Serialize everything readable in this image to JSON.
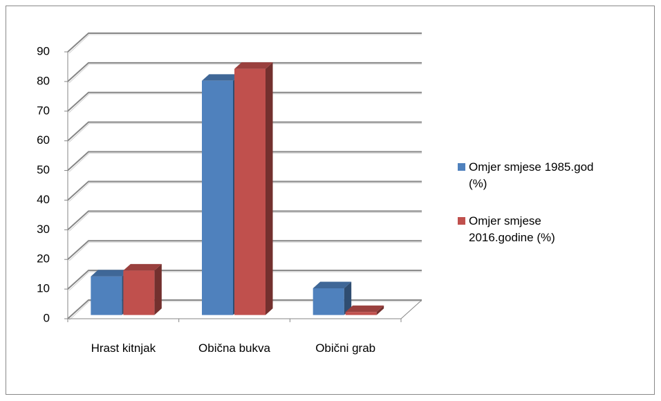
{
  "chart_data": {
    "type": "bar3d",
    "categories": [
      "Hrast kitnjak",
      "Obična bukva",
      "Obični grab"
    ],
    "series": [
      {
        "name": "Omjer smjese 1985.god (%)",
        "color": "#4f81bd",
        "values": [
          13,
          79,
          9
        ]
      },
      {
        "name": "Omjer smjese 2016.godine (%)",
        "color": "#c0504d",
        "values": [
          15,
          83,
          1
        ]
      }
    ],
    "ylim": [
      0,
      90
    ],
    "yticks": [
      0,
      10,
      20,
      30,
      40,
      50,
      60,
      70,
      80,
      90
    ],
    "grid": true,
    "legend": "right"
  }
}
